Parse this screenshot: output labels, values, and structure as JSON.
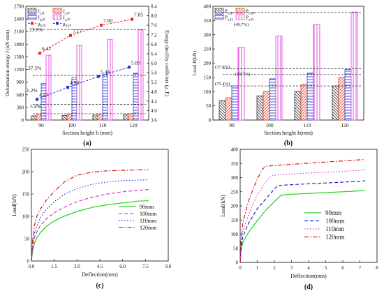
{
  "chart_data": [
    {
      "id": "a",
      "panel_label": "(a)",
      "type": "bar",
      "xlabel": "Section height h (mm)",
      "ylabel": "Deformation energy J (kN·mm)",
      "ylabel2": "Energy ductility coefficient (μ_E)",
      "categories": [
        "90",
        "100",
        "110",
        "120"
      ],
      "ylim": [
        0,
        2700
      ],
      "yticks": [
        "0",
        "300",
        "600",
        "900",
        "1200",
        "1500",
        "1800",
        "2100",
        "2400",
        "2700"
      ],
      "y2lim": [
        3.6,
        8.4
      ],
      "y2ticks": [
        "3.6",
        "4.0",
        "4.4",
        "4.8",
        "5.2",
        "5.6",
        "6.0",
        "6.4",
        "6.8",
        "7.2",
        "7.6",
        "8.0",
        "8.4"
      ],
      "series": [
        {
          "name": "J_y,H",
          "color": "#333333",
          "pattern": "hatch-back",
          "values": [
            100,
            110,
            120,
            130
          ]
        },
        {
          "name": "J_y,N",
          "color": "#e8341c",
          "pattern": "hatch-fwd",
          "values": [
            130,
            140,
            145,
            150
          ]
        },
        {
          "name": "J_u,H",
          "color": "#2a3bd4",
          "pattern": "hbars",
          "values": [
            870,
            1000,
            1080,
            1110
          ]
        },
        {
          "name": "J_u,N",
          "color": "#e03ce0",
          "pattern": "vbars",
          "values": [
            1540,
            1770,
            1910,
            2140
          ]
        }
      ],
      "lines": [
        {
          "name": "μ_E,H",
          "color": "#1a2bd8",
          "style": "dashed",
          "axis": "right",
          "values": [
            4.47,
            4.98,
            5.44,
            5.83
          ],
          "labels": [
            "4.47",
            "4.98",
            "5.44",
            "5.83"
          ]
        },
        {
          "name": "μ_E,N",
          "color": "#e8241c",
          "style": "dashed",
          "axis": "right",
          "values": [
            6.42,
            7.17,
            7.6,
            7.85
          ],
          "labels": [
            "6.42",
            "7.17",
            "7.60",
            "7.85"
          ]
        }
      ],
      "annotations": [
        "5.4%",
        "1.2%",
        "37.5%",
        "23.0%"
      ],
      "legend_position": "top-left"
    },
    {
      "id": "b",
      "panel_label": "(b)",
      "type": "bar",
      "xlabel": "Section height h(mm)",
      "ylabel": "Load P(kN)",
      "categories": [
        "90",
        "100",
        "110",
        "120"
      ],
      "ylim": [
        0,
        400
      ],
      "yticks": [
        "0",
        "50",
        "100",
        "150",
        "200",
        "250",
        "300",
        "350",
        "400"
      ],
      "series": [
        {
          "name": "P_cr,H",
          "color": "#333333",
          "pattern": "hatch-back",
          "values": [
            68,
            85,
            100,
            120
          ]
        },
        {
          "name": "P_cr,N",
          "color": "#e8341c",
          "pattern": "hatch-fwd",
          "values": [
            78,
            100,
            125,
            150
          ]
        },
        {
          "name": "P_u,H",
          "color": "#2a3bd4",
          "pattern": "hbars",
          "values": [
            120,
            145,
            165,
            178
          ]
        },
        {
          "name": "P_u,N",
          "color": "#e03ce0",
          "pattern": "vbars",
          "values": [
            255,
            295,
            335,
            380
          ]
        }
      ],
      "annotations": [
        "(75.4%)",
        "(37.9%)",
        "(30.7%)",
        "(49.7%)"
      ],
      "legend_position": "top-left"
    },
    {
      "id": "c",
      "panel_label": "(c)",
      "type": "line",
      "xlabel": "Deflection(mm)",
      "ylabel": "Load(kN)",
      "xlim": [
        0,
        9
      ],
      "xticks": [
        "0.0",
        "1.5",
        "3.0",
        "4.5",
        "6.0",
        "7.5",
        "9.0"
      ],
      "ylim": [
        0,
        250
      ],
      "yticks": [
        "0",
        "50",
        "100",
        "150",
        "200",
        "250"
      ],
      "series": [
        {
          "name": "90mm",
          "color": "#1fd41f",
          "style": "solid",
          "x": [
            0,
            0.08,
            0.2,
            0.35,
            0.6,
            1.0,
            1.5,
            2.2,
            3.0,
            4.0,
            5.0,
            6.0,
            7.0,
            7.7
          ],
          "y": [
            0,
            22,
            40,
            52,
            64,
            78,
            90,
            101,
            111,
            120,
            126,
            130,
            134,
            135
          ]
        },
        {
          "name": "100mm",
          "color": "#d03ad8",
          "style": "dashed",
          "x": [
            0,
            0.08,
            0.2,
            0.35,
            0.6,
            1.0,
            1.5,
            2.2,
            3.0,
            4.0,
            5.0,
            6.0,
            7.0,
            7.7
          ],
          "y": [
            0,
            30,
            52,
            65,
            80,
            95,
            108,
            121,
            133,
            143,
            150,
            155,
            158,
            160
          ]
        },
        {
          "name": "110mm",
          "color": "#2233d8",
          "style": "dotted",
          "x": [
            0,
            0.08,
            0.2,
            0.35,
            0.6,
            1.0,
            1.5,
            2.2,
            3.0,
            4.0,
            5.0,
            6.0,
            7.0,
            7.7
          ],
          "y": [
            0,
            38,
            62,
            78,
            97,
            117,
            133,
            150,
            162,
            172,
            177,
            180,
            181,
            182
          ]
        },
        {
          "name": "120mm",
          "color": "#d81a1a",
          "style": "dash-dot",
          "x": [
            0,
            0.08,
            0.2,
            0.35,
            0.6,
            1.0,
            1.5,
            2.2,
            3.0,
            4.0,
            5.0,
            6.0,
            7.0,
            7.7
          ],
          "y": [
            0,
            48,
            80,
            100,
            117,
            137,
            156,
            178,
            192,
            199,
            202,
            203,
            204,
            204
          ]
        }
      ],
      "legend_position": "right"
    },
    {
      "id": "d",
      "panel_label": "(d)",
      "type": "line",
      "xlabel": "Deflection(mm)",
      "ylabel": "Load(kN)",
      "xlim": [
        0,
        8
      ],
      "xticks": [
        "0",
        "1",
        "2",
        "3",
        "4",
        "5",
        "6",
        "7",
        "8"
      ],
      "ylim": [
        0,
        400
      ],
      "yticks": [
        "0",
        "50",
        "100",
        "150",
        "200",
        "250",
        "300",
        "350",
        "400"
      ],
      "series": [
        {
          "name": "90mm",
          "color": "#1fd41f",
          "style": "solid",
          "x": [
            0,
            0.05,
            0.15,
            0.5,
            1.0,
            1.5,
            2.0,
            2.4,
            3.0,
            4.0,
            5.0,
            6.0,
            7.0,
            7.3
          ],
          "y": [
            0,
            40,
            70,
            108,
            148,
            185,
            215,
            238,
            241,
            244,
            247,
            250,
            253,
            254
          ]
        },
        {
          "name": "100mm",
          "color": "#1a22d8",
          "style": "dashed",
          "x": [
            0,
            0.05,
            0.15,
            0.5,
            1.0,
            1.5,
            2.0,
            2.2,
            3.0,
            4.0,
            5.0,
            6.0,
            7.0,
            7.3
          ],
          "y": [
            0,
            50,
            90,
            140,
            190,
            225,
            260,
            272,
            275,
            278,
            281,
            284,
            287,
            289
          ]
        },
        {
          "name": "110mm",
          "color": "#d03ad8",
          "style": "dotted",
          "x": [
            0,
            0.05,
            0.15,
            0.5,
            1.0,
            1.5,
            1.8,
            2.0,
            3.0,
            4.0,
            5.0,
            6.0,
            7.0,
            7.3
          ],
          "y": [
            0,
            60,
            110,
            170,
            240,
            285,
            305,
            309,
            313,
            316,
            319,
            322,
            326,
            328
          ]
        },
        {
          "name": "120mm",
          "color": "#d81a1a",
          "style": "dash-dot",
          "x": [
            0,
            0.05,
            0.15,
            0.5,
            1.0,
            1.3,
            1.5,
            2.0,
            3.0,
            4.0,
            5.0,
            6.0,
            7.0,
            7.3
          ],
          "y": [
            0,
            75,
            140,
            220,
            295,
            330,
            340,
            343,
            347,
            351,
            355,
            359,
            363,
            364
          ]
        }
      ],
      "legend_position": "right"
    }
  ]
}
